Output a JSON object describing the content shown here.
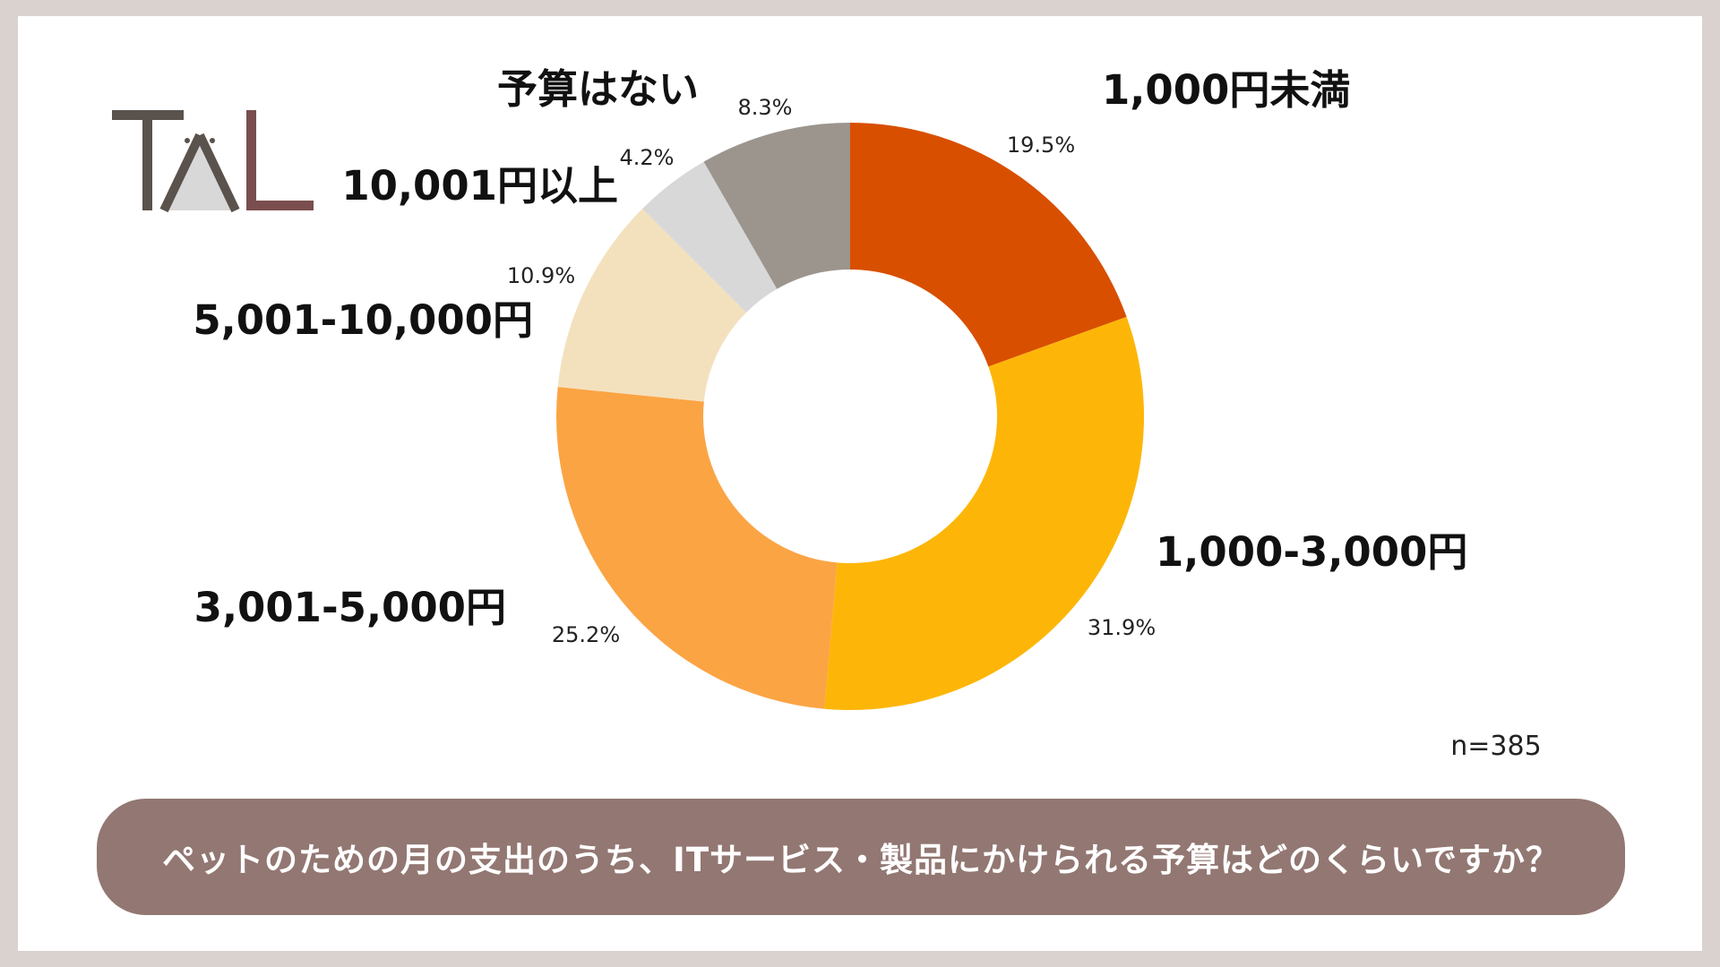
{
  "colors": {
    "background": "#d9d2cf",
    "card": "#ffffff",
    "banner": "#927772",
    "logo_dark": "#5a524d",
    "logo_maroon": "#7a4e4e",
    "logo_light": "#d8d8d8"
  },
  "logo": {
    "text": "TAL"
  },
  "sample_size": "n=385",
  "question": "ペットのための月の支出のうち、ITサービス・製品にかけられる予算はどのくらいですか？",
  "chart_data": {
    "type": "pie",
    "donut": true,
    "start": "top",
    "direction": "clockwise",
    "unit": "%",
    "slices": [
      {
        "label": "1,000円未満",
        "value": 19.5,
        "value_label": "19.5%",
        "color": "#d84f00"
      },
      {
        "label": "1,000-3,000円",
        "value": 31.9,
        "value_label": "31.9%",
        "color": "#fdb608"
      },
      {
        "label": "3,001-5,000円",
        "value": 25.2,
        "value_label": "25.2%",
        "color": "#fba444"
      },
      {
        "label": "5,001-10,000円",
        "value": 10.9,
        "value_label": "10.9%",
        "color": "#f3e1be"
      },
      {
        "label": "10,001円以上",
        "value": 4.2,
        "value_label": "4.2%",
        "color": "#d8d8d8"
      },
      {
        "label": "予算はない",
        "value": 8.3,
        "value_label": "8.3%",
        "color": "#9b958e"
      }
    ]
  }
}
